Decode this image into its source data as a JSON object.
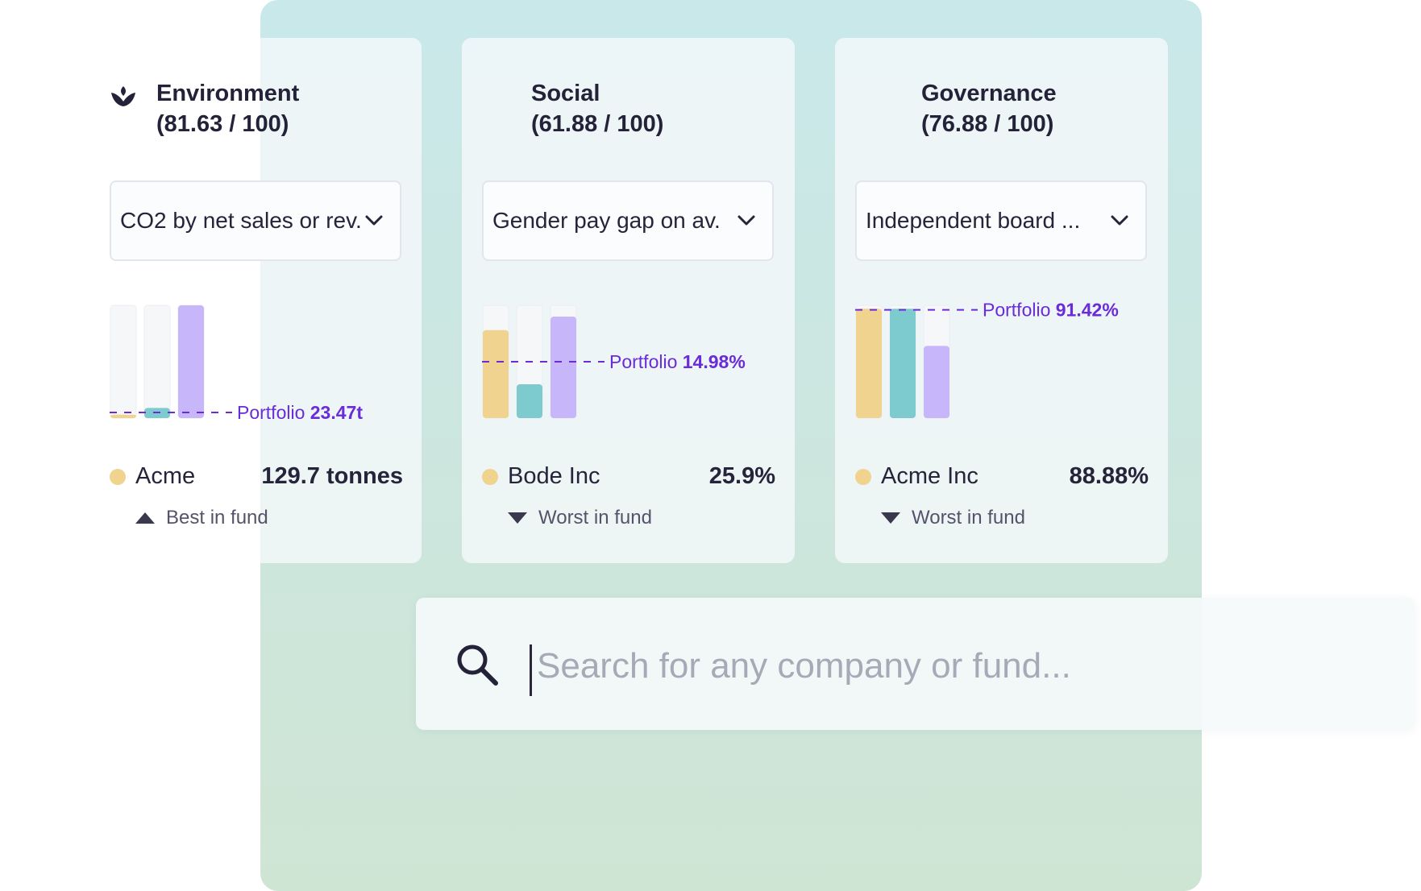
{
  "colors": {
    "company": "#efd38e",
    "sector": "#7ecbcf",
    "benchmark": "#c8b6fa",
    "empty": "#f6f7f9",
    "portfolio_line": "#6a2bd8"
  },
  "cards": [
    {
      "key": "environment",
      "icon": "leaf-icon",
      "title": "Environment",
      "score": "(81.63 / 100)",
      "dropdown": {
        "value": "CO2 by net sales or rev."
      },
      "chart_data": {
        "type": "bar",
        "bars_fill_fraction": [
          0.03,
          0.09,
          1.0
        ],
        "portfolio_fraction": 0.05,
        "portfolio_label": "Portfolio",
        "portfolio_value": "23.47t"
      },
      "company": {
        "name": "Acme",
        "value": "129.7 tonnes"
      },
      "rank": {
        "direction": "up",
        "label": "Best in fund"
      }
    },
    {
      "key": "social",
      "icon": "",
      "title": "Social",
      "score": "(61.88 / 100)",
      "dropdown": {
        "value": "Gender pay gap on av."
      },
      "chart_data": {
        "type": "bar",
        "bars_fill_fraction": [
          0.78,
          0.3,
          0.9
        ],
        "portfolio_fraction": 0.5,
        "portfolio_label": "Portfolio",
        "portfolio_value": "14.98%"
      },
      "company": {
        "name": "Bode Inc",
        "value": "25.9%"
      },
      "rank": {
        "direction": "down",
        "label": "Worst in fund"
      }
    },
    {
      "key": "governance",
      "icon": "",
      "title": "Governance",
      "score": "(76.88 / 100)",
      "dropdown": {
        "value": "Independent board ..."
      },
      "chart_data": {
        "type": "bar",
        "bars_fill_fraction": [
          0.97,
          0.97,
          0.64
        ],
        "portfolio_fraction": 0.96,
        "portfolio_label": "Portfolio",
        "portfolio_value": "91.42%"
      },
      "company": {
        "name": "Acme Inc",
        "value": "88.88%"
      },
      "rank": {
        "direction": "down",
        "label": "Worst in fund"
      }
    }
  ],
  "search": {
    "placeholder": "Search for any company or fund...",
    "value": "",
    "icon": "search-icon"
  }
}
